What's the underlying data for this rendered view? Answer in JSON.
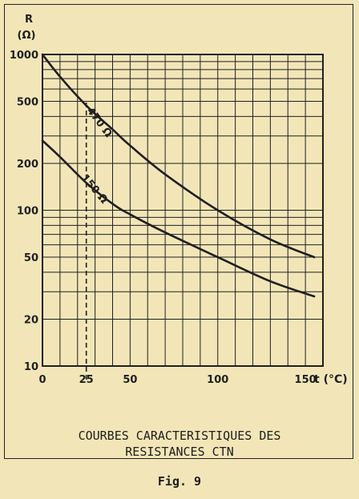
{
  "chart_data": {
    "type": "line",
    "title": "COURBES CARACTERISTIQUES DES RESISTANCES CTN",
    "title_lines": [
      "COURBES CARACTERISTIQUES DES",
      "RESISTANCES CTN"
    ],
    "ylabel_top": "R",
    "ylabel_unit": "(Ω)",
    "xlabel": "t (°C)",
    "y_scale": "log",
    "ylim": [
      10,
      1000
    ],
    "xlim": [
      0,
      160
    ],
    "x_ticks": [
      0,
      25,
      50,
      100,
      150
    ],
    "x_tick_labels": [
      "0",
      "25",
      "50",
      "100",
      "150"
    ],
    "y_ticks": [
      10,
      20,
      50,
      100,
      200,
      500,
      1000
    ],
    "y_tick_labels": [
      "10",
      "20",
      "50",
      "100",
      "200",
      "500",
      "1000"
    ],
    "reference_line_x": 25,
    "grid": true,
    "series": [
      {
        "name": "470 Ω",
        "x": [
          0,
          10,
          25,
          40,
          50,
          70,
          100,
          130,
          155
        ],
        "values": [
          1000,
          720,
          470,
          330,
          260,
          170,
          100,
          65,
          50
        ]
      },
      {
        "name": "150 Ω",
        "x": [
          0,
          10,
          25,
          40,
          50,
          70,
          100,
          130,
          155
        ],
        "values": [
          280,
          220,
          150,
          110,
          94,
          72,
          50,
          35,
          28
        ]
      }
    ]
  },
  "figure_label": "Fig. 9"
}
